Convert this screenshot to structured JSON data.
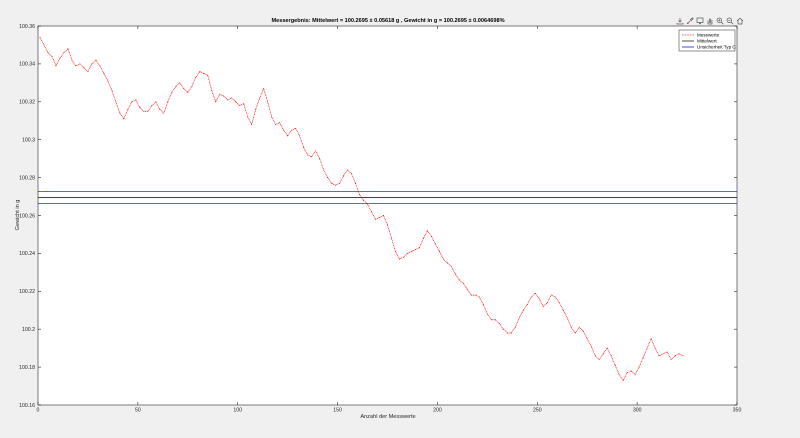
{
  "toolbar": {
    "icons": [
      "export-icon",
      "brush-icon",
      "datatips-icon",
      "pan-icon",
      "zoom-in-icon",
      "zoom-out-icon",
      "home-icon"
    ]
  },
  "colors": {
    "background": "#f0f0f0",
    "axes": "#ffffff",
    "messwerte": "#ff0000",
    "mittelwert": "#000000",
    "unsicherheit": "#0000ff"
  },
  "chart_data": {
    "type": "line",
    "title": "Messergebnis: Mittelwert = 100.2695 ± 0.05618 g , Gewicht in g = 100.2695 ± 0.0064698%",
    "xlabel": "Anzahl der Messwerte",
    "ylabel": "Gewicht in g",
    "xlim": [
      0,
      350
    ],
    "ylim": [
      100.16,
      100.36
    ],
    "xticks": [
      0,
      50,
      100,
      150,
      200,
      250,
      300,
      350
    ],
    "yticks": [
      100.16,
      100.18,
      100.2,
      100.22,
      100.24,
      100.26,
      100.28,
      100.3,
      100.32,
      100.34,
      100.36
    ],
    "xtick_labels": [
      "0",
      "50",
      "100",
      "150",
      "200",
      "250",
      "300",
      "350"
    ],
    "ytick_labels": [
      "100.16",
      "100.18",
      "100.2",
      "100.22",
      "100.24",
      "100.26",
      "100.28",
      "100.3",
      "100.32",
      "100.34",
      "100.36"
    ],
    "grid": false,
    "legend_position": "top-right",
    "series": [
      {
        "name": "Messwerte",
        "style": "dotted-line",
        "points": [
          [
            1,
            100.354
          ],
          [
            3,
            100.35
          ],
          [
            5,
            100.346
          ],
          [
            7,
            100.344
          ],
          [
            9,
            100.339
          ],
          [
            11,
            100.343
          ],
          [
            13,
            100.346
          ],
          [
            15,
            100.348
          ],
          [
            17,
            100.342
          ],
          [
            19,
            100.339
          ],
          [
            21,
            100.34
          ],
          [
            23,
            100.338
          ],
          [
            25,
            100.336
          ],
          [
            27,
            100.34
          ],
          [
            29,
            100.342
          ],
          [
            31,
            100.339
          ],
          [
            33,
            100.335
          ],
          [
            35,
            100.331
          ],
          [
            37,
            100.326
          ],
          [
            39,
            100.32
          ],
          [
            41,
            100.314
          ],
          [
            43,
            100.311
          ],
          [
            45,
            100.316
          ],
          [
            47,
            100.32
          ],
          [
            49,
            100.321
          ],
          [
            51,
            100.317
          ],
          [
            53,
            100.315
          ],
          [
            55,
            100.315
          ],
          [
            57,
            100.318
          ],
          [
            59,
            100.32
          ],
          [
            61,
            100.316
          ],
          [
            63,
            100.314
          ],
          [
            65,
            100.32
          ],
          [
            67,
            100.325
          ],
          [
            69,
            100.328
          ],
          [
            71,
            100.33
          ],
          [
            73,
            100.327
          ],
          [
            75,
            100.325
          ],
          [
            77,
            100.328
          ],
          [
            79,
            100.333
          ],
          [
            81,
            100.336
          ],
          [
            83,
            100.335
          ],
          [
            85,
            100.334
          ],
          [
            87,
            100.326
          ],
          [
            89,
            100.32
          ],
          [
            91,
            100.324
          ],
          [
            93,
            100.323
          ],
          [
            95,
            100.321
          ],
          [
            97,
            100.322
          ],
          [
            99,
            100.32
          ],
          [
            101,
            100.318
          ],
          [
            103,
            100.319
          ],
          [
            105,
            100.312
          ],
          [
            107,
            100.308
          ],
          [
            109,
            100.316
          ],
          [
            111,
            100.322
          ],
          [
            113,
            100.327
          ],
          [
            115,
            100.32
          ],
          [
            117,
            100.312
          ],
          [
            119,
            100.308
          ],
          [
            121,
            100.309
          ],
          [
            123,
            100.305
          ],
          [
            125,
            100.302
          ],
          [
            127,
            100.305
          ],
          [
            129,
            100.306
          ],
          [
            131,
            100.302
          ],
          [
            133,
            100.296
          ],
          [
            135,
            100.292
          ],
          [
            137,
            100.291
          ],
          [
            139,
            100.294
          ],
          [
            141,
            100.29
          ],
          [
            143,
            100.284
          ],
          [
            145,
            100.28
          ],
          [
            147,
            100.277
          ],
          [
            149,
            100.276
          ],
          [
            151,
            100.277
          ],
          [
            153,
            100.281
          ],
          [
            155,
            100.284
          ],
          [
            157,
            100.282
          ],
          [
            159,
            100.277
          ],
          [
            161,
            100.271
          ],
          [
            163,
            100.268
          ],
          [
            165,
            100.266
          ],
          [
            167,
            100.262
          ],
          [
            169,
            100.258
          ],
          [
            171,
            100.259
          ],
          [
            173,
            100.26
          ],
          [
            175,
            100.255
          ],
          [
            177,
            100.248
          ],
          [
            179,
            100.241
          ],
          [
            181,
            100.237
          ],
          [
            183,
            100.238
          ],
          [
            185,
            100.24
          ],
          [
            187,
            100.241
          ],
          [
            189,
            100.242
          ],
          [
            191,
            100.243
          ],
          [
            193,
            100.248
          ],
          [
            195,
            100.252
          ],
          [
            197,
            100.249
          ],
          [
            199,
            100.245
          ],
          [
            201,
            100.241
          ],
          [
            203,
            100.237
          ],
          [
            205,
            100.235
          ],
          [
            207,
            100.233
          ],
          [
            209,
            100.229
          ],
          [
            211,
            100.226
          ],
          [
            213,
            100.224
          ],
          [
            215,
            100.221
          ],
          [
            217,
            100.218
          ],
          [
            219,
            100.218
          ],
          [
            221,
            100.217
          ],
          [
            223,
            100.213
          ],
          [
            225,
            100.208
          ],
          [
            227,
            100.205
          ],
          [
            229,
            100.205
          ],
          [
            231,
            100.203
          ],
          [
            233,
            100.2
          ],
          [
            235,
            100.198
          ],
          [
            237,
            100.198
          ],
          [
            239,
            100.201
          ],
          [
            241,
            100.206
          ],
          [
            243,
            100.21
          ],
          [
            245,
            100.213
          ],
          [
            247,
            100.217
          ],
          [
            249,
            100.219
          ],
          [
            251,
            100.216
          ],
          [
            253,
            100.212
          ],
          [
            255,
            100.214
          ],
          [
            257,
            100.218
          ],
          [
            259,
            100.217
          ],
          [
            261,
            100.214
          ],
          [
            263,
            100.21
          ],
          [
            265,
            100.206
          ],
          [
            267,
            100.201
          ],
          [
            269,
            100.198
          ],
          [
            271,
            100.201
          ],
          [
            273,
            100.199
          ],
          [
            275,
            100.195
          ],
          [
            277,
            100.191
          ],
          [
            279,
            100.186
          ],
          [
            281,
            100.184
          ],
          [
            283,
            100.187
          ],
          [
            285,
            100.19
          ],
          [
            287,
            100.186
          ],
          [
            289,
            100.181
          ],
          [
            291,
            100.176
          ],
          [
            293,
            100.173
          ],
          [
            295,
            100.177
          ],
          [
            297,
            100.178
          ],
          [
            299,
            100.176
          ],
          [
            301,
            100.18
          ],
          [
            303,
            100.185
          ],
          [
            305,
            100.19
          ],
          [
            307,
            100.195
          ],
          [
            309,
            100.19
          ],
          [
            311,
            100.186
          ],
          [
            313,
            100.187
          ],
          [
            315,
            100.188
          ],
          [
            317,
            100.184
          ],
          [
            319,
            100.186
          ],
          [
            321,
            100.187
          ],
          [
            323,
            100.186
          ]
        ]
      },
      {
        "name": "Mittelwert",
        "style": "hline",
        "y": 100.2695
      },
      {
        "name": "Unsicherheit Typ C",
        "style": "hline",
        "y": [
          100.2727,
          100.2663
        ]
      }
    ]
  }
}
